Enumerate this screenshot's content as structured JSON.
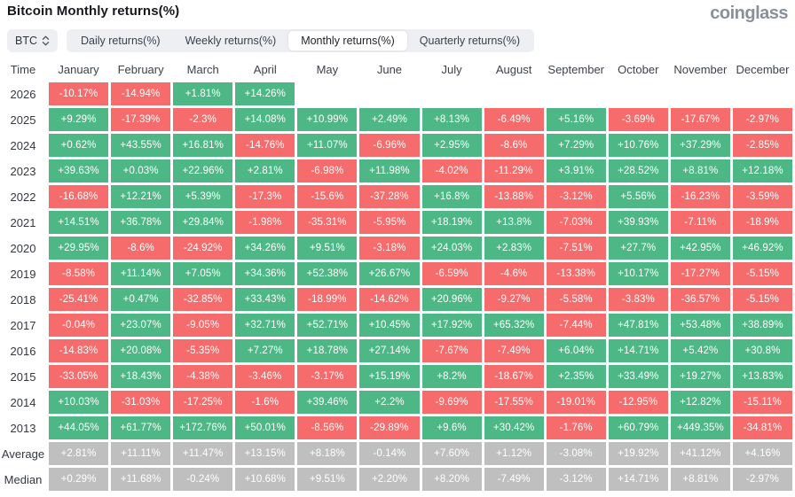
{
  "title": "Bitcoin Monthly returns(%)",
  "logo": "coinglass",
  "colors": {
    "green": "#4db885",
    "red": "#f66c6c",
    "grey": "#bfbfbf"
  },
  "controls": {
    "symbol": "BTC",
    "tabs": [
      {
        "label": "Daily returns(%)",
        "active": false
      },
      {
        "label": "Weekly returns(%)",
        "active": false
      },
      {
        "label": "Monthly returns(%)",
        "active": true
      },
      {
        "label": "Quarterly returns(%)",
        "active": false
      }
    ]
  },
  "table": {
    "columns": [
      "Time",
      "January",
      "February",
      "March",
      "April",
      "May",
      "June",
      "July",
      "August",
      "September",
      "October",
      "November",
      "December"
    ],
    "rows": [
      {
        "label": "2026",
        "cells": [
          {
            "v": "-10.17%",
            "c": "r"
          },
          {
            "v": "-14.94%",
            "c": "r"
          },
          {
            "v": "+1.81%",
            "c": "g"
          },
          {
            "v": "+14.26%",
            "c": "g"
          },
          {
            "v": "",
            "c": "e"
          },
          {
            "v": "",
            "c": "e"
          },
          {
            "v": "",
            "c": "e"
          },
          {
            "v": "",
            "c": "e"
          },
          {
            "v": "",
            "c": "e"
          },
          {
            "v": "",
            "c": "e"
          },
          {
            "v": "",
            "c": "e"
          },
          {
            "v": "",
            "c": "e"
          }
        ]
      },
      {
        "label": "2025",
        "cells": [
          {
            "v": "+9.29%",
            "c": "g"
          },
          {
            "v": "-17.39%",
            "c": "r"
          },
          {
            "v": "-2.3%",
            "c": "r"
          },
          {
            "v": "+14.08%",
            "c": "g"
          },
          {
            "v": "+10.99%",
            "c": "g"
          },
          {
            "v": "+2.49%",
            "c": "g"
          },
          {
            "v": "+8.13%",
            "c": "g"
          },
          {
            "v": "-6.49%",
            "c": "r"
          },
          {
            "v": "+5.16%",
            "c": "g"
          },
          {
            "v": "-3.69%",
            "c": "r"
          },
          {
            "v": "-17.67%",
            "c": "r"
          },
          {
            "v": "-2.97%",
            "c": "r"
          }
        ]
      },
      {
        "label": "2024",
        "cells": [
          {
            "v": "+0.62%",
            "c": "g"
          },
          {
            "v": "+43.55%",
            "c": "g"
          },
          {
            "v": "+16.81%",
            "c": "g"
          },
          {
            "v": "-14.76%",
            "c": "r"
          },
          {
            "v": "+11.07%",
            "c": "g"
          },
          {
            "v": "-6.96%",
            "c": "r"
          },
          {
            "v": "+2.95%",
            "c": "g"
          },
          {
            "v": "-8.6%",
            "c": "r"
          },
          {
            "v": "+7.29%",
            "c": "g"
          },
          {
            "v": "+10.76%",
            "c": "g"
          },
          {
            "v": "+37.29%",
            "c": "g"
          },
          {
            "v": "-2.85%",
            "c": "r"
          }
        ]
      },
      {
        "label": "2023",
        "cells": [
          {
            "v": "+39.63%",
            "c": "g"
          },
          {
            "v": "+0.03%",
            "c": "g"
          },
          {
            "v": "+22.96%",
            "c": "g"
          },
          {
            "v": "+2.81%",
            "c": "g"
          },
          {
            "v": "-6.98%",
            "c": "r"
          },
          {
            "v": "+11.98%",
            "c": "g"
          },
          {
            "v": "-4.02%",
            "c": "r"
          },
          {
            "v": "-11.29%",
            "c": "r"
          },
          {
            "v": "+3.91%",
            "c": "g"
          },
          {
            "v": "+28.52%",
            "c": "g"
          },
          {
            "v": "+8.81%",
            "c": "g"
          },
          {
            "v": "+12.18%",
            "c": "g"
          }
        ]
      },
      {
        "label": "2022",
        "cells": [
          {
            "v": "-16.68%",
            "c": "r"
          },
          {
            "v": "+12.21%",
            "c": "g"
          },
          {
            "v": "+5.39%",
            "c": "g"
          },
          {
            "v": "-17.3%",
            "c": "r"
          },
          {
            "v": "-15.6%",
            "c": "r"
          },
          {
            "v": "-37.28%",
            "c": "r"
          },
          {
            "v": "+16.8%",
            "c": "g"
          },
          {
            "v": "-13.88%",
            "c": "r"
          },
          {
            "v": "-3.12%",
            "c": "r"
          },
          {
            "v": "+5.56%",
            "c": "g"
          },
          {
            "v": "-16.23%",
            "c": "r"
          },
          {
            "v": "-3.59%",
            "c": "r"
          }
        ]
      },
      {
        "label": "2021",
        "cells": [
          {
            "v": "+14.51%",
            "c": "g"
          },
          {
            "v": "+36.78%",
            "c": "g"
          },
          {
            "v": "+29.84%",
            "c": "g"
          },
          {
            "v": "-1.98%",
            "c": "r"
          },
          {
            "v": "-35.31%",
            "c": "r"
          },
          {
            "v": "-5.95%",
            "c": "r"
          },
          {
            "v": "+18.19%",
            "c": "g"
          },
          {
            "v": "+13.8%",
            "c": "g"
          },
          {
            "v": "-7.03%",
            "c": "r"
          },
          {
            "v": "+39.93%",
            "c": "g"
          },
          {
            "v": "-7.11%",
            "c": "r"
          },
          {
            "v": "-18.9%",
            "c": "r"
          }
        ]
      },
      {
        "label": "2020",
        "cells": [
          {
            "v": "+29.95%",
            "c": "g"
          },
          {
            "v": "-8.6%",
            "c": "r"
          },
          {
            "v": "-24.92%",
            "c": "r"
          },
          {
            "v": "+34.26%",
            "c": "g"
          },
          {
            "v": "+9.51%",
            "c": "g"
          },
          {
            "v": "-3.18%",
            "c": "r"
          },
          {
            "v": "+24.03%",
            "c": "g"
          },
          {
            "v": "+2.83%",
            "c": "g"
          },
          {
            "v": "-7.51%",
            "c": "r"
          },
          {
            "v": "+27.7%",
            "c": "g"
          },
          {
            "v": "+42.95%",
            "c": "g"
          },
          {
            "v": "+46.92%",
            "c": "g"
          }
        ]
      },
      {
        "label": "2019",
        "cells": [
          {
            "v": "-8.58%",
            "c": "r"
          },
          {
            "v": "+11.14%",
            "c": "g"
          },
          {
            "v": "+7.05%",
            "c": "g"
          },
          {
            "v": "+34.36%",
            "c": "g"
          },
          {
            "v": "+52.38%",
            "c": "g"
          },
          {
            "v": "+26.67%",
            "c": "g"
          },
          {
            "v": "-6.59%",
            "c": "r"
          },
          {
            "v": "-4.6%",
            "c": "r"
          },
          {
            "v": "-13.38%",
            "c": "r"
          },
          {
            "v": "+10.17%",
            "c": "g"
          },
          {
            "v": "-17.27%",
            "c": "r"
          },
          {
            "v": "-5.15%",
            "c": "r"
          }
        ]
      },
      {
        "label": "2018",
        "cells": [
          {
            "v": "-25.41%",
            "c": "r"
          },
          {
            "v": "+0.47%",
            "c": "g"
          },
          {
            "v": "-32.85%",
            "c": "r"
          },
          {
            "v": "+33.43%",
            "c": "g"
          },
          {
            "v": "-18.99%",
            "c": "r"
          },
          {
            "v": "-14.62%",
            "c": "r"
          },
          {
            "v": "+20.96%",
            "c": "g"
          },
          {
            "v": "-9.27%",
            "c": "r"
          },
          {
            "v": "-5.58%",
            "c": "r"
          },
          {
            "v": "-3.83%",
            "c": "r"
          },
          {
            "v": "-36.57%",
            "c": "r"
          },
          {
            "v": "-5.15%",
            "c": "r"
          }
        ]
      },
      {
        "label": "2017",
        "cells": [
          {
            "v": "-0.04%",
            "c": "r"
          },
          {
            "v": "+23.07%",
            "c": "g"
          },
          {
            "v": "-9.05%",
            "c": "r"
          },
          {
            "v": "+32.71%",
            "c": "g"
          },
          {
            "v": "+52.71%",
            "c": "g"
          },
          {
            "v": "+10.45%",
            "c": "g"
          },
          {
            "v": "+17.92%",
            "c": "g"
          },
          {
            "v": "+65.32%",
            "c": "g"
          },
          {
            "v": "-7.44%",
            "c": "r"
          },
          {
            "v": "+47.81%",
            "c": "g"
          },
          {
            "v": "+53.48%",
            "c": "g"
          },
          {
            "v": "+38.89%",
            "c": "g"
          }
        ]
      },
      {
        "label": "2016",
        "cells": [
          {
            "v": "-14.83%",
            "c": "r"
          },
          {
            "v": "+20.08%",
            "c": "g"
          },
          {
            "v": "-5.35%",
            "c": "r"
          },
          {
            "v": "+7.27%",
            "c": "g"
          },
          {
            "v": "+18.78%",
            "c": "g"
          },
          {
            "v": "+27.14%",
            "c": "g"
          },
          {
            "v": "-7.67%",
            "c": "r"
          },
          {
            "v": "-7.49%",
            "c": "r"
          },
          {
            "v": "+6.04%",
            "c": "g"
          },
          {
            "v": "+14.71%",
            "c": "g"
          },
          {
            "v": "+5.42%",
            "c": "g"
          },
          {
            "v": "+30.8%",
            "c": "g"
          }
        ]
      },
      {
        "label": "2015",
        "cells": [
          {
            "v": "-33.05%",
            "c": "r"
          },
          {
            "v": "+18.43%",
            "c": "g"
          },
          {
            "v": "-4.38%",
            "c": "r"
          },
          {
            "v": "-3.46%",
            "c": "r"
          },
          {
            "v": "-3.17%",
            "c": "r"
          },
          {
            "v": "+15.19%",
            "c": "g"
          },
          {
            "v": "+8.2%",
            "c": "g"
          },
          {
            "v": "-18.67%",
            "c": "r"
          },
          {
            "v": "+2.35%",
            "c": "g"
          },
          {
            "v": "+33.49%",
            "c": "g"
          },
          {
            "v": "+19.27%",
            "c": "g"
          },
          {
            "v": "+13.83%",
            "c": "g"
          }
        ]
      },
      {
        "label": "2014",
        "cells": [
          {
            "v": "+10.03%",
            "c": "g"
          },
          {
            "v": "-31.03%",
            "c": "r"
          },
          {
            "v": "-17.25%",
            "c": "r"
          },
          {
            "v": "-1.6%",
            "c": "r"
          },
          {
            "v": "+39.46%",
            "c": "g"
          },
          {
            "v": "+2.2%",
            "c": "g"
          },
          {
            "v": "-9.69%",
            "c": "r"
          },
          {
            "v": "-17.55%",
            "c": "r"
          },
          {
            "v": "-19.01%",
            "c": "r"
          },
          {
            "v": "-12.95%",
            "c": "r"
          },
          {
            "v": "+12.82%",
            "c": "g"
          },
          {
            "v": "-15.11%",
            "c": "r"
          }
        ]
      },
      {
        "label": "2013",
        "cells": [
          {
            "v": "+44.05%",
            "c": "g"
          },
          {
            "v": "+61.77%",
            "c": "g"
          },
          {
            "v": "+172.76%",
            "c": "g"
          },
          {
            "v": "+50.01%",
            "c": "g"
          },
          {
            "v": "-8.56%",
            "c": "r"
          },
          {
            "v": "-29.89%",
            "c": "r"
          },
          {
            "v": "+9.6%",
            "c": "g"
          },
          {
            "v": "+30.42%",
            "c": "g"
          },
          {
            "v": "-1.76%",
            "c": "r"
          },
          {
            "v": "+60.79%",
            "c": "g"
          },
          {
            "v": "+449.35%",
            "c": "g"
          },
          {
            "v": "-34.81%",
            "c": "r"
          }
        ]
      },
      {
        "label": "Average",
        "cells": [
          {
            "v": "+2.81%",
            "c": "n"
          },
          {
            "v": "+11.11%",
            "c": "n"
          },
          {
            "v": "+11.47%",
            "c": "n"
          },
          {
            "v": "+13.15%",
            "c": "n"
          },
          {
            "v": "+8.18%",
            "c": "n"
          },
          {
            "v": "-0.14%",
            "c": "n"
          },
          {
            "v": "+7.60%",
            "c": "n"
          },
          {
            "v": "+1.12%",
            "c": "n"
          },
          {
            "v": "-3.08%",
            "c": "n"
          },
          {
            "v": "+19.92%",
            "c": "n"
          },
          {
            "v": "+41.12%",
            "c": "n"
          },
          {
            "v": "+4.16%",
            "c": "n"
          }
        ]
      },
      {
        "label": "Median",
        "cells": [
          {
            "v": "+0.29%",
            "c": "n"
          },
          {
            "v": "+11.68%",
            "c": "n"
          },
          {
            "v": "-0.24%",
            "c": "n"
          },
          {
            "v": "+10.68%",
            "c": "n"
          },
          {
            "v": "+9.51%",
            "c": "n"
          },
          {
            "v": "+2.20%",
            "c": "n"
          },
          {
            "v": "+8.20%",
            "c": "n"
          },
          {
            "v": "-7.49%",
            "c": "n"
          },
          {
            "v": "-3.12%",
            "c": "n"
          },
          {
            "v": "+14.71%",
            "c": "n"
          },
          {
            "v": "+8.81%",
            "c": "n"
          },
          {
            "v": "-2.97%",
            "c": "n"
          }
        ]
      }
    ]
  }
}
